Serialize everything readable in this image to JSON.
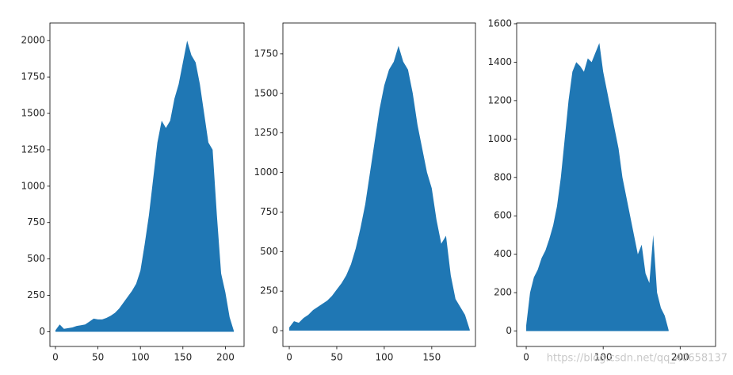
{
  "chart_data": [
    {
      "type": "area",
      "color": "#1f77b4",
      "x": [
        0,
        5,
        10,
        15,
        20,
        25,
        30,
        35,
        40,
        45,
        50,
        55,
        60,
        65,
        70,
        75,
        80,
        85,
        90,
        95,
        100,
        105,
        110,
        115,
        120,
        125,
        130,
        135,
        140,
        145,
        150,
        155,
        160,
        165,
        170,
        175,
        180,
        185,
        190,
        195,
        200,
        205,
        210
      ],
      "values": [
        10,
        50,
        20,
        25,
        30,
        40,
        45,
        50,
        70,
        90,
        85,
        85,
        95,
        110,
        130,
        160,
        200,
        240,
        280,
        330,
        420,
        600,
        800,
        1050,
        1300,
        1450,
        1400,
        1450,
        1600,
        1700,
        1850,
        2000,
        1900,
        1850,
        1700,
        1500,
        1300,
        1250,
        800,
        400,
        270,
        100,
        5
      ],
      "xlim": [
        -6.5,
        222
      ],
      "ylim": [
        -101,
        2121
      ],
      "xticks": [
        0,
        50,
        100,
        150,
        200
      ],
      "yticks": [
        0,
        250,
        500,
        750,
        1000,
        1250,
        1500,
        1750,
        2000
      ]
    },
    {
      "type": "area",
      "color": "#1f77b4",
      "x": [
        0,
        5,
        10,
        15,
        20,
        25,
        30,
        35,
        40,
        45,
        50,
        55,
        60,
        65,
        70,
        75,
        80,
        85,
        90,
        95,
        100,
        105,
        110,
        115,
        120,
        125,
        130,
        135,
        140,
        145,
        150,
        155,
        160,
        165,
        170,
        175,
        180,
        185,
        190
      ],
      "values": [
        20,
        60,
        50,
        80,
        100,
        130,
        150,
        170,
        190,
        220,
        260,
        300,
        350,
        420,
        520,
        650,
        800,
        1000,
        1200,
        1400,
        1550,
        1650,
        1700,
        1800,
        1700,
        1650,
        1500,
        1300,
        1150,
        1000,
        900,
        700,
        550,
        600,
        350,
        200,
        150,
        100,
        5
      ],
      "xlim": [
        -6.7,
        196
      ],
      "ylim": [
        -100,
        1945
      ],
      "xticks": [
        0,
        50,
        100,
        150
      ],
      "yticks": [
        0,
        250,
        500,
        750,
        1000,
        1250,
        1500,
        1750
      ]
    },
    {
      "type": "area",
      "color": "#1f77b4",
      "x": [
        0,
        5,
        10,
        15,
        20,
        25,
        30,
        35,
        40,
        45,
        50,
        55,
        60,
        65,
        70,
        75,
        80,
        85,
        90,
        95,
        100,
        105,
        110,
        115,
        120,
        125,
        130,
        135,
        140,
        145,
        150,
        155,
        160,
        165,
        170,
        175,
        180,
        185
      ],
      "values": [
        30,
        200,
        280,
        320,
        380,
        420,
        480,
        550,
        650,
        800,
        1000,
        1200,
        1350,
        1400,
        1380,
        1350,
        1420,
        1400,
        1450,
        1500,
        1350,
        1250,
        1150,
        1050,
        950,
        800,
        700,
        600,
        500,
        400,
        450,
        300,
        250,
        500,
        200,
        120,
        80,
        5
      ],
      "xlim": [
        -12.4,
        246
      ],
      "ylim": [
        -80,
        1604
      ],
      "xticks": [
        0,
        100,
        200
      ],
      "yticks": [
        0,
        200,
        400,
        600,
        800,
        1000,
        1200,
        1400,
        1600
      ],
      "watermark": "https://blog.csdn.net/qq_40658137"
    }
  ]
}
